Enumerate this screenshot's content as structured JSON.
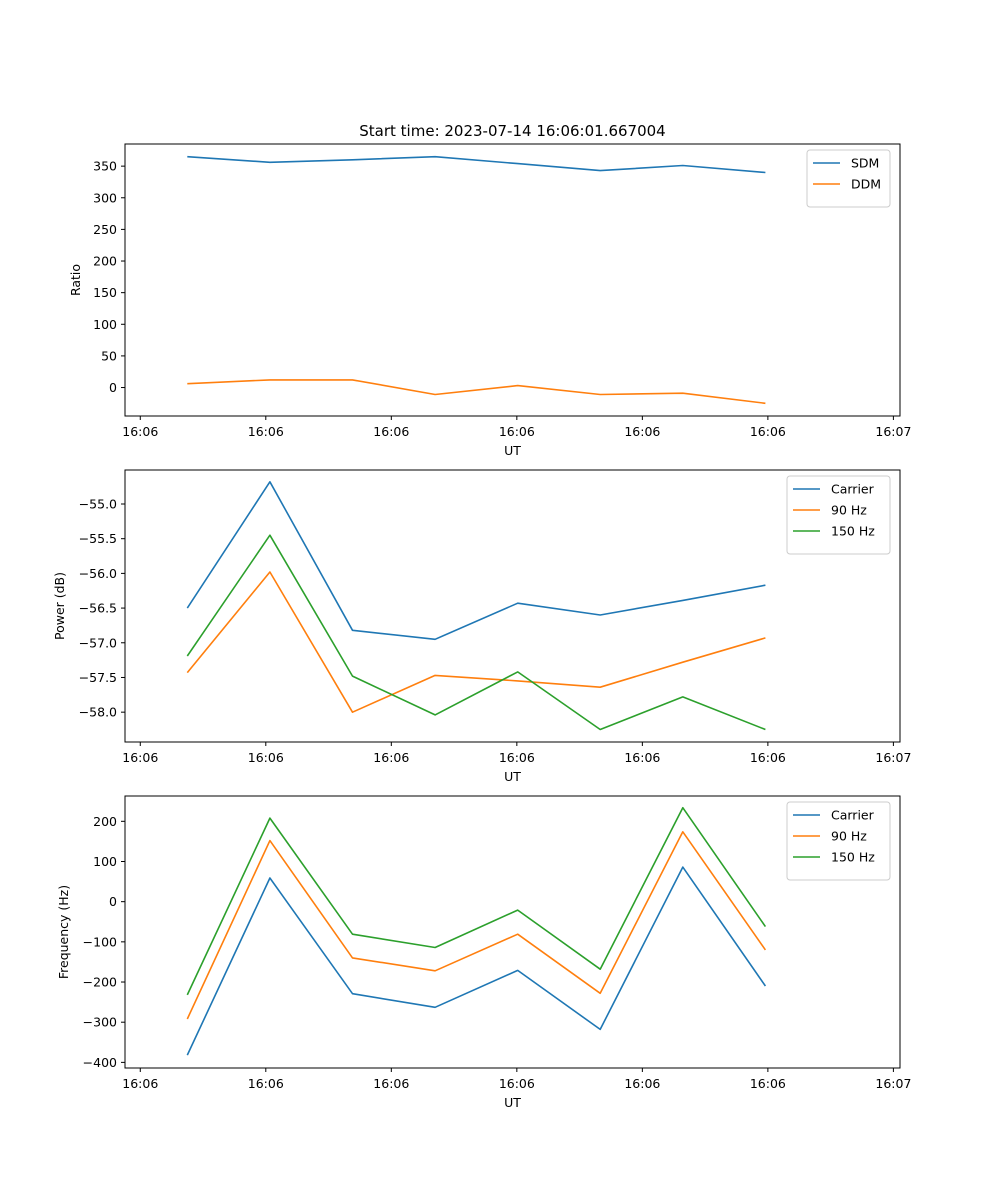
{
  "figure": {
    "title": "Start time: 2023-07-14 16:06:01.667004"
  },
  "chart_data": [
    {
      "type": "line",
      "id": "ratio",
      "title": "Start time: 2023-07-14 16:06:01.667004",
      "xlabel": "UT",
      "ylabel": "Ratio",
      "x": [
        0,
        1,
        2,
        3,
        4,
        5,
        6,
        7
      ],
      "xlim": [
        -0.755,
        8.63
      ],
      "x_ticks": [
        -0.57,
        0.95,
        2.47,
        3.99,
        5.51,
        7.03,
        8.55
      ],
      "x_tick_labels": [
        "16:06",
        "16:06",
        "16:06",
        "16:06",
        "16:06",
        "16:06",
        "16:07"
      ],
      "ylim": [
        -45,
        385
      ],
      "y_ticks": [
        0,
        50,
        100,
        150,
        200,
        250,
        300,
        350
      ],
      "y_tick_labels": [
        "0",
        "50",
        "100",
        "150",
        "200",
        "250",
        "300",
        "350"
      ],
      "legend": "top-right",
      "series": [
        {
          "name": "SDM",
          "color": "#1f77b4",
          "values": [
            365,
            356,
            360,
            365,
            354,
            343,
            351,
            340
          ]
        },
        {
          "name": "DDM",
          "color": "#ff7f0e",
          "values": [
            6,
            12,
            12,
            -11,
            3,
            -11,
            -9,
            -25
          ]
        }
      ]
    },
    {
      "type": "line",
      "id": "power",
      "title": "",
      "xlabel": "UT",
      "ylabel": "Power (dB)",
      "x": [
        0,
        1,
        2,
        3,
        4,
        5,
        6,
        7
      ],
      "xlim": [
        -0.755,
        8.63
      ],
      "x_ticks": [
        -0.57,
        0.95,
        2.47,
        3.99,
        5.51,
        7.03,
        8.55
      ],
      "x_tick_labels": [
        "16:06",
        "16:06",
        "16:06",
        "16:06",
        "16:06",
        "16:06",
        "16:07"
      ],
      "ylim": [
        -58.43,
        -54.51
      ],
      "y_ticks": [
        -55.0,
        -55.5,
        -56.0,
        -56.5,
        -57.0,
        -57.5,
        -58.0
      ],
      "y_tick_labels": [
        "−55.0",
        "−55.5",
        "−56.0",
        "−56.5",
        "−57.0",
        "−57.5",
        "−58.0"
      ],
      "legend": "top-right",
      "series": [
        {
          "name": "Carrier",
          "color": "#1f77b4",
          "values": [
            -56.5,
            -54.68,
            -56.82,
            -56.95,
            -56.43,
            -56.6,
            -56.39,
            -56.17
          ]
        },
        {
          "name": "90 Hz",
          "color": "#ff7f0e",
          "values": [
            -57.43,
            -55.98,
            -58.0,
            -57.47,
            -57.55,
            -57.64,
            -57.28,
            -56.93
          ]
        },
        {
          "name": "150 Hz",
          "color": "#2ca02c",
          "values": [
            -57.19,
            -55.45,
            -57.48,
            -58.04,
            -57.42,
            -58.25,
            -57.78,
            -58.25
          ]
        }
      ]
    },
    {
      "type": "line",
      "id": "frequency",
      "title": "",
      "xlabel": "UT",
      "ylabel": "Frequency (Hz)",
      "x": [
        0,
        1,
        2,
        3,
        4,
        5,
        6,
        7
      ],
      "xlim": [
        -0.755,
        8.63
      ],
      "x_ticks": [
        -0.57,
        0.95,
        2.47,
        3.99,
        5.51,
        7.03,
        8.55
      ],
      "x_tick_labels": [
        "16:06",
        "16:06",
        "16:06",
        "16:06",
        "16:06",
        "16:06",
        "16:07"
      ],
      "ylim": [
        -414,
        263
      ],
      "y_ticks": [
        200,
        100,
        0,
        -100,
        -200,
        -300,
        -400
      ],
      "y_tick_labels": [
        "200",
        "100",
        "0",
        "−100",
        "−200",
        "−300",
        "−400"
      ],
      "legend": "top-right",
      "series": [
        {
          "name": "Carrier",
          "color": "#1f77b4",
          "values": [
            -382,
            59,
            -229,
            -263,
            -171,
            -318,
            86,
            -210
          ]
        },
        {
          "name": "90 Hz",
          "color": "#ff7f0e",
          "values": [
            -292,
            152,
            -140,
            -172,
            -81,
            -228,
            174,
            -120
          ]
        },
        {
          "name": "150 Hz",
          "color": "#2ca02c",
          "values": [
            -232,
            208,
            -81,
            -114,
            -21,
            -168,
            234,
            -62
          ]
        }
      ]
    }
  ]
}
